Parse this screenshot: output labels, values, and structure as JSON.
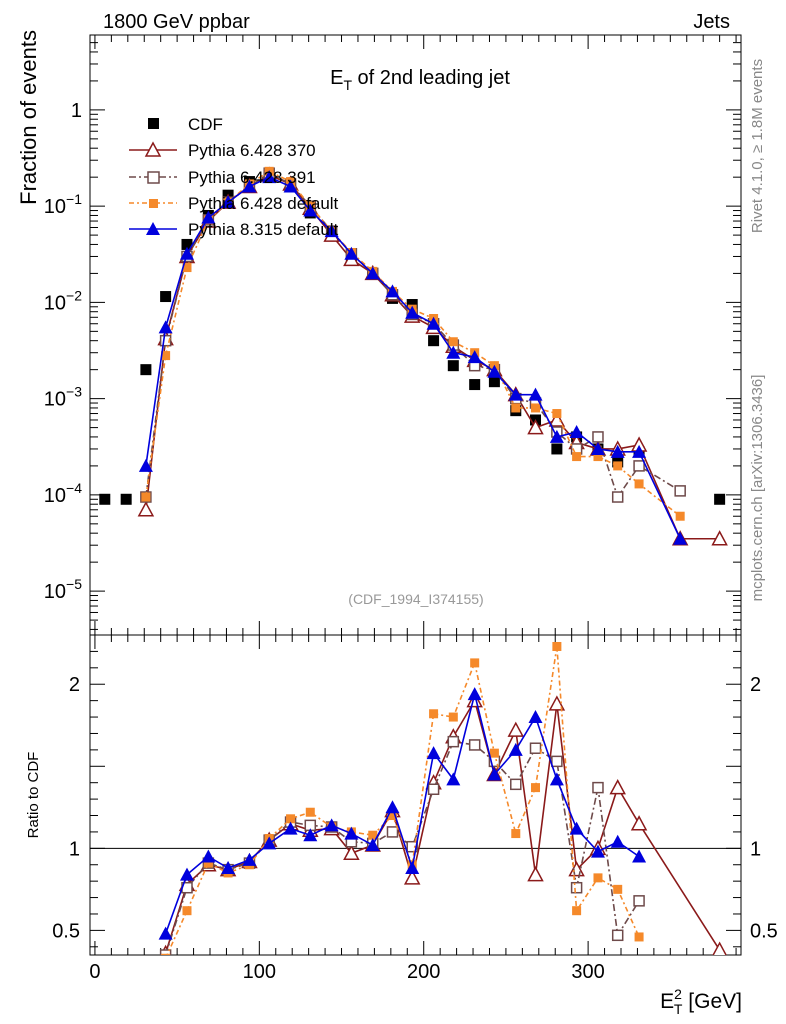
{
  "header": {
    "left": "1800 GeV ppbar",
    "right": "Jets"
  },
  "side_labels": {
    "rivet": "Rivet 4.1.0, ≥ 1.8M events",
    "mcplots": "mcplots.cern.ch [arXiv:1306.3436]"
  },
  "chart_data": [
    {
      "type": "scatter",
      "title_main": "E",
      "title_sub": "T",
      "title_rest": " of 2nd leading jet",
      "ylabel": "Fraction of events",
      "yscale": "log",
      "ylim": [
        3.5e-06,
        6
      ],
      "xlim": [
        -3,
        393
      ],
      "ytick_labels": [
        {
          "value": 1,
          "label": "1"
        },
        {
          "value": 0.1,
          "base": "10",
          "exp": "−1"
        },
        {
          "value": 0.01,
          "base": "10",
          "exp": "−2"
        },
        {
          "value": 0.001,
          "base": "10",
          "exp": "−3"
        },
        {
          "value": 0.0001,
          "base": "10",
          "exp": "−4"
        },
        {
          "value": 1e-05,
          "base": "10",
          "exp": "−5"
        }
      ],
      "watermark": "(CDF_1994_I374155)",
      "legend": [
        "CDF",
        "Pythia 6.428 370",
        "Pythia 6.428 391",
        "Pythia 6.428 default",
        "Pythia 8.315 default"
      ],
      "series": [
        {
          "name": "CDF",
          "color": "#000000",
          "marker": "square-filled",
          "x": [
            6,
            19,
            31,
            43,
            56,
            69,
            81,
            94,
            106,
            119,
            131,
            144,
            156,
            169,
            181,
            193,
            206,
            218,
            231,
            243,
            256,
            268,
            281,
            293,
            306,
            318,
            331,
            380
          ],
          "y": [
            9e-05,
            9e-05,
            0.002,
            0.0115,
            0.04,
            0.08,
            0.13,
            0.18,
            0.2,
            0.16,
            0.085,
            0.05,
            0.03,
            0.02,
            0.011,
            0.0095,
            0.004,
            0.0022,
            0.0014,
            0.0015,
            0.00075,
            0.0006,
            0.0003,
            0.0004,
            0.0003,
            0.00022,
            0.00028,
            9e-05
          ]
        },
        {
          "name": "Pythia 6.428 370",
          "color": "#8b1a1a",
          "marker": "triangle-open",
          "x": [
            31,
            43,
            56,
            69,
            81,
            94,
            106,
            119,
            131,
            144,
            156,
            169,
            181,
            193,
            206,
            218,
            231,
            243,
            256,
            268,
            281,
            293,
            306,
            318,
            331,
            356,
            380
          ],
          "y": [
            7e-05,
            0.0042,
            0.03,
            0.07,
            0.11,
            0.16,
            0.21,
            0.17,
            0.095,
            0.05,
            0.028,
            0.02,
            0.012,
            0.0072,
            0.0055,
            0.0035,
            0.0025,
            0.002,
            0.0011,
            0.0005,
            0.0006,
            0.00035,
            0.0003,
            0.0003,
            0.00033,
            3.5e-05,
            3.5e-05
          ]
        },
        {
          "name": "Pythia 6.428 391",
          "color": "#6e4a4a",
          "marker": "square-open",
          "x": [
            31,
            43,
            56,
            69,
            81,
            94,
            106,
            119,
            131,
            144,
            156,
            169,
            181,
            193,
            206,
            218,
            231,
            243,
            256,
            268,
            281,
            293,
            306,
            318,
            331,
            356
          ],
          "y": [
            9.5e-05,
            0.004,
            0.03,
            0.072,
            0.11,
            0.16,
            0.22,
            0.17,
            0.1,
            0.055,
            0.032,
            0.02,
            0.012,
            0.0075,
            0.006,
            0.0036,
            0.0022,
            0.002,
            0.001,
            0.0009,
            0.00045,
            0.0003,
            0.0004,
            9.5e-05,
            0.0002,
            0.00011
          ]
        },
        {
          "name": "Pythia 6.428 default",
          "color": "#f5892a",
          "marker": "square-filled",
          "x": [
            31,
            43,
            56,
            69,
            81,
            94,
            106,
            119,
            131,
            144,
            156,
            169,
            181,
            193,
            206,
            218,
            231,
            243,
            256,
            268,
            281,
            293,
            306,
            318,
            331,
            356
          ],
          "y": [
            9.5e-05,
            0.0028,
            0.023,
            0.072,
            0.11,
            0.17,
            0.23,
            0.18,
            0.1,
            0.055,
            0.033,
            0.021,
            0.013,
            0.0085,
            0.0068,
            0.0039,
            0.003,
            0.0022,
            0.0008,
            0.0008,
            0.0007,
            0.00025,
            0.00025,
            0.0002,
            0.00013,
            6e-05
          ]
        },
        {
          "name": "Pythia 8.315 default",
          "color": "#0000dd",
          "marker": "triangle-filled",
          "x": [
            31,
            43,
            56,
            69,
            81,
            94,
            106,
            119,
            131,
            144,
            156,
            169,
            181,
            193,
            206,
            218,
            231,
            243,
            256,
            268,
            281,
            293,
            306,
            318,
            331,
            356
          ],
          "y": [
            0.0002,
            0.0055,
            0.032,
            0.076,
            0.11,
            0.16,
            0.2,
            0.16,
            0.09,
            0.055,
            0.032,
            0.02,
            0.013,
            0.0078,
            0.006,
            0.003,
            0.0027,
            0.0019,
            0.0011,
            0.0011,
            0.0004,
            0.00045,
            0.0003,
            0.00028,
            0.00028,
            3.5e-05
          ]
        }
      ]
    },
    {
      "type": "scatter",
      "ylabel": "Ratio to CDF",
      "xlabel_main": "E",
      "xlabel_sup": "2",
      "xlabel_sub": "T",
      "xlabel_rest": " [GeV]",
      "ylim": [
        0.35,
        2.3
      ],
      "xlim": [
        -3,
        393
      ],
      "reference_line": 1,
      "ytick_labels": [
        {
          "value": 0.5,
          "label": "0.5"
        },
        {
          "value": 1,
          "label": "1"
        },
        {
          "value": 2,
          "label": "2"
        }
      ],
      "xtick_labels": [
        {
          "value": 0,
          "label": "0"
        },
        {
          "value": 100,
          "label": "100"
        },
        {
          "value": 200,
          "label": "200"
        },
        {
          "value": 300,
          "label": "300"
        }
      ],
      "series": [
        {
          "name": "Pythia 6.428 370",
          "color": "#8b1a1a",
          "marker": "triangle-open",
          "x": [
            43,
            56,
            69,
            81,
            94,
            106,
            119,
            131,
            144,
            156,
            169,
            181,
            193,
            206,
            218,
            231,
            243,
            256,
            268,
            281,
            293,
            306,
            318,
            331,
            380
          ],
          "y": [
            0.36,
            0.78,
            0.9,
            0.87,
            0.92,
            1.05,
            1.15,
            1.11,
            1.12,
            0.97,
            1.02,
            1.23,
            0.82,
            1.4,
            1.68,
            1.9,
            1.45,
            1.72,
            0.84,
            1.88,
            0.87,
            1.0,
            1.37,
            1.15,
            0.38
          ]
        },
        {
          "name": "Pythia 6.428 391",
          "color": "#6e4a4a",
          "marker": "square-open",
          "x": [
            43,
            56,
            69,
            81,
            94,
            106,
            119,
            131,
            144,
            156,
            169,
            181,
            193,
            206,
            218,
            231,
            243,
            256,
            268,
            281,
            293,
            306,
            318,
            331
          ],
          "y": [
            0.35,
            0.76,
            0.91,
            0.87,
            0.91,
            1.05,
            1.16,
            1.14,
            1.13,
            1.04,
            1.03,
            1.1,
            1.01,
            1.36,
            1.65,
            1.63,
            1.53,
            1.39,
            1.61,
            1.53,
            0.76,
            1.37,
            0.47,
            0.68
          ]
        },
        {
          "name": "Pythia 6.428 default",
          "color": "#f5892a",
          "marker": "square-filled",
          "x": [
            43,
            56,
            69,
            81,
            94,
            106,
            119,
            131,
            144,
            156,
            169,
            181,
            193,
            206,
            218,
            231,
            243,
            256,
            268,
            281,
            293,
            306,
            318,
            331
          ],
          "y": [
            0.33,
            0.62,
            0.91,
            0.85,
            0.9,
            1.06,
            1.18,
            1.22,
            1.13,
            1.1,
            1.08,
            1.2,
            0.9,
            1.82,
            1.8,
            2.13,
            1.58,
            1.09,
            1.37,
            2.23,
            0.62,
            0.82,
            0.75,
            0.46
          ]
        },
        {
          "name": "Pythia 8.315 default",
          "color": "#0000dd",
          "marker": "triangle-filled",
          "x": [
            43,
            56,
            69,
            81,
            94,
            106,
            119,
            131,
            144,
            156,
            169,
            181,
            193,
            206,
            218,
            231,
            243,
            256,
            268,
            281,
            293,
            306,
            318,
            331
          ],
          "y": [
            0.48,
            0.84,
            0.95,
            0.88,
            0.93,
            1.03,
            1.12,
            1.08,
            1.14,
            1.09,
            1.02,
            1.25,
            0.88,
            1.58,
            1.42,
            1.94,
            1.45,
            1.6,
            1.8,
            1.42,
            1.12,
            0.98,
            1.04,
            0.95
          ]
        }
      ]
    }
  ]
}
